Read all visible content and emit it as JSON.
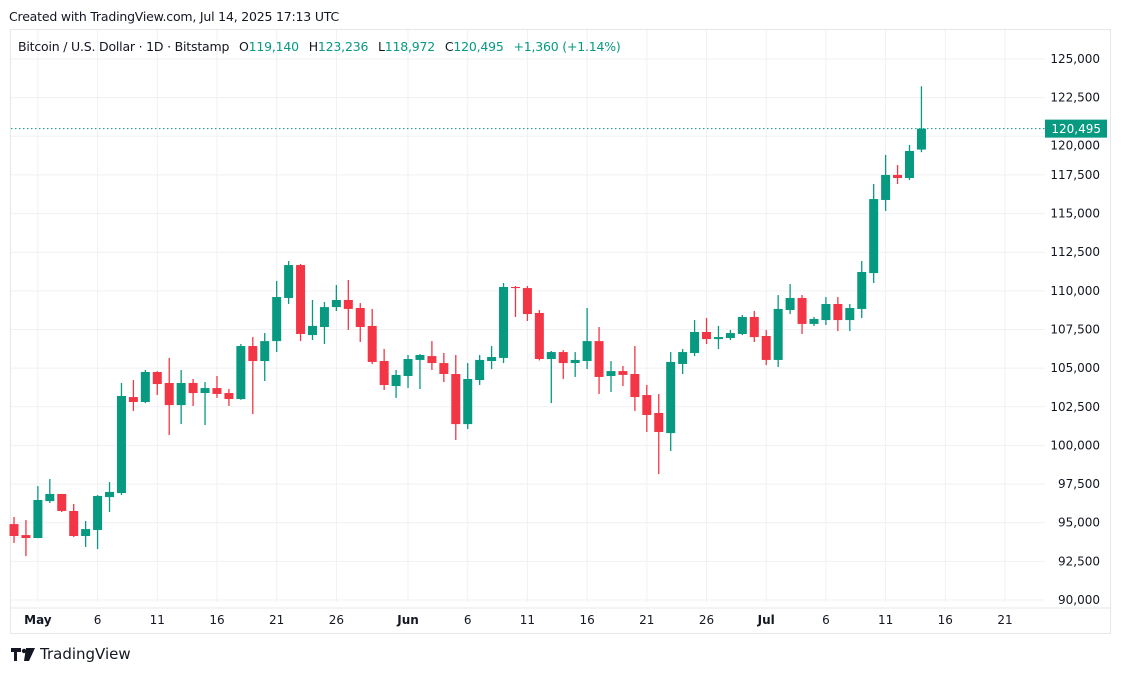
{
  "header": {
    "created": "Created with TradingView.com, Jul 14, 2025 17:13 UTC"
  },
  "legend": {
    "symbol": "Bitcoin / U.S. Dollar · 1D · Bitstamp",
    "o_label": "O",
    "o": "119,140",
    "h_label": "H",
    "h": "123,236",
    "l_label": "L",
    "l": "118,972",
    "c_label": "C",
    "c": "120,495",
    "change": "+1,360 (+1.14%)"
  },
  "footer": {
    "brand": "TradingView",
    "logo_icon": "tradingview-logo-icon"
  },
  "colors": {
    "up": "#089981",
    "down": "#F23645",
    "grid": "#f0f1f3",
    "text": "#131722"
  },
  "chart_data": {
    "type": "candlestick",
    "title": "Bitcoin / U.S. Dollar · 1D · Bitstamp",
    "ylim": [
      90000,
      125000
    ],
    "y_ticks": [
      "125,000",
      "122,500",
      "120,000",
      "117,500",
      "115,000",
      "112,500",
      "110,000",
      "107,500",
      "105,000",
      "102,500",
      "100,000",
      "97,500",
      "95,000",
      "92,500",
      "90,000"
    ],
    "y_tick_values": [
      125000,
      122500,
      120000,
      117500,
      115000,
      112500,
      110000,
      107500,
      105000,
      102500,
      100000,
      97500,
      95000,
      92500,
      90000
    ],
    "x_ticks": [
      {
        "label": "May",
        "date": "2025-05-01",
        "bold": true
      },
      {
        "label": "6",
        "date": "2025-05-06"
      },
      {
        "label": "11",
        "date": "2025-05-11"
      },
      {
        "label": "16",
        "date": "2025-05-16"
      },
      {
        "label": "21",
        "date": "2025-05-21"
      },
      {
        "label": "26",
        "date": "2025-05-26"
      },
      {
        "label": "Jun",
        "date": "2025-06-01",
        "bold": true
      },
      {
        "label": "6",
        "date": "2025-06-06"
      },
      {
        "label": "11",
        "date": "2025-06-11"
      },
      {
        "label": "16",
        "date": "2025-06-16"
      },
      {
        "label": "21",
        "date": "2025-06-21"
      },
      {
        "label": "26",
        "date": "2025-06-26"
      },
      {
        "label": "Jul",
        "date": "2025-07-01",
        "bold": true
      },
      {
        "label": "6",
        "date": "2025-07-06"
      },
      {
        "label": "11",
        "date": "2025-07-11"
      },
      {
        "label": "16",
        "date": "2025-07-16"
      },
      {
        "label": "21",
        "date": "2025-07-21"
      }
    ],
    "x_range": [
      "2025-04-28",
      "2025-07-31"
    ],
    "grid": true,
    "last_price": 120495,
    "last_price_label": "120,495",
    "columns": [
      "date",
      "open",
      "high",
      "low",
      "close"
    ],
    "candles": [
      [
        "2025-04-29",
        94910,
        95370,
        93690,
        94140
      ],
      [
        "2025-04-30",
        94200,
        95170,
        92840,
        94010
      ],
      [
        "2025-05-01",
        94010,
        97370,
        94000,
        96470
      ],
      [
        "2025-05-02",
        96400,
        97830,
        96270,
        96860
      ],
      [
        "2025-05-03",
        96860,
        96860,
        95690,
        95760
      ],
      [
        "2025-05-04",
        95760,
        96210,
        94070,
        94140
      ],
      [
        "2025-05-05",
        94140,
        95110,
        93430,
        94590
      ],
      [
        "2025-05-06",
        94530,
        96790,
        93300,
        96730
      ],
      [
        "2025-05-07",
        96660,
        97630,
        95690,
        96990
      ],
      [
        "2025-05-08",
        96920,
        104040,
        96790,
        103200
      ],
      [
        "2025-05-09",
        103130,
        104230,
        102230,
        102810
      ],
      [
        "2025-05-10",
        102810,
        104880,
        102740,
        104750
      ],
      [
        "2025-05-11",
        104750,
        104800,
        103260,
        103970
      ],
      [
        "2025-05-12",
        104040,
        105660,
        100670,
        102610
      ],
      [
        "2025-05-13",
        102610,
        104880,
        101380,
        104040
      ],
      [
        "2025-05-14",
        104040,
        104300,
        102550,
        103390
      ],
      [
        "2025-05-15",
        103390,
        104100,
        101320,
        103710
      ],
      [
        "2025-05-16",
        103710,
        104490,
        103070,
        103330
      ],
      [
        "2025-05-17",
        103390,
        103650,
        102550,
        103000
      ],
      [
        "2025-05-18",
        103000,
        106560,
        102950,
        106430
      ],
      [
        "2025-05-19",
        106430,
        107010,
        102030,
        105460
      ],
      [
        "2025-05-20",
        105460,
        107270,
        104170,
        106750
      ],
      [
        "2025-05-21",
        106750,
        110640,
        106040,
        109600
      ],
      [
        "2025-05-22",
        109540,
        111930,
        109150,
        111670
      ],
      [
        "2025-05-23",
        111670,
        111740,
        106750,
        107210
      ],
      [
        "2025-05-24",
        107140,
        109410,
        106820,
        107730
      ],
      [
        "2025-05-25",
        107660,
        109280,
        106560,
        108950
      ],
      [
        "2025-05-26",
        108950,
        110380,
        108700,
        109410
      ],
      [
        "2025-05-27",
        109410,
        110700,
        107470,
        108830
      ],
      [
        "2025-05-28",
        108890,
        109210,
        106690,
        107660
      ],
      [
        "2025-05-29",
        107730,
        108830,
        105270,
        105400
      ],
      [
        "2025-05-30",
        105460,
        106240,
        103580,
        103910
      ],
      [
        "2025-05-31",
        103840,
        104880,
        103070,
        104560
      ],
      [
        "2025-06-01",
        104490,
        105850,
        103710,
        105590
      ],
      [
        "2025-06-02",
        105530,
        105910,
        103650,
        105850
      ],
      [
        "2025-06-03",
        105780,
        106750,
        104880,
        105330
      ],
      [
        "2025-06-04",
        105330,
        105980,
        104100,
        104620
      ],
      [
        "2025-06-05",
        104620,
        105850,
        100350,
        101380
      ],
      [
        "2025-06-06",
        101380,
        105330,
        101060,
        104300
      ],
      [
        "2025-06-07",
        104230,
        105850,
        103910,
        105530
      ],
      [
        "2025-06-08",
        105460,
        106430,
        104940,
        105720
      ],
      [
        "2025-06-09",
        105660,
        110510,
        105330,
        110250
      ],
      [
        "2025-06-10",
        110250,
        110310,
        108310,
        110180
      ],
      [
        "2025-06-11",
        110180,
        110310,
        108050,
        108500
      ],
      [
        "2025-06-12",
        108570,
        108760,
        105500,
        105590
      ],
      [
        "2025-06-13",
        105590,
        106110,
        102740,
        106040
      ],
      [
        "2025-06-14",
        106040,
        106170,
        104300,
        105330
      ],
      [
        "2025-06-15",
        105330,
        106040,
        104430,
        105530
      ],
      [
        "2025-06-16",
        105460,
        108890,
        104940,
        106750
      ],
      [
        "2025-06-17",
        106750,
        107660,
        103330,
        104430
      ],
      [
        "2025-06-18",
        104490,
        105460,
        103460,
        104810
      ],
      [
        "2025-06-19",
        104810,
        105140,
        103840,
        104560
      ],
      [
        "2025-06-20",
        104620,
        106430,
        102230,
        103130
      ],
      [
        "2025-06-21",
        103260,
        103910,
        100870,
        101970
      ],
      [
        "2025-06-22",
        102100,
        103330,
        98150,
        100870
      ],
      [
        "2025-06-23",
        100800,
        106040,
        99640,
        105400
      ],
      [
        "2025-06-24",
        105270,
        106240,
        104620,
        106040
      ],
      [
        "2025-06-25",
        105980,
        108110,
        105780,
        107340
      ],
      [
        "2025-06-26",
        107340,
        108240,
        106560,
        106880
      ],
      [
        "2025-06-27",
        106880,
        107730,
        106240,
        107010
      ],
      [
        "2025-06-28",
        106950,
        107470,
        106820,
        107270
      ],
      [
        "2025-06-29",
        107210,
        108440,
        107140,
        108310
      ],
      [
        "2025-06-30",
        108310,
        108700,
        106690,
        107010
      ],
      [
        "2025-07-01",
        107080,
        107470,
        105200,
        105530
      ],
      [
        "2025-07-02",
        105530,
        109730,
        105070,
        108830
      ],
      [
        "2025-07-03",
        108760,
        110440,
        108500,
        109540
      ],
      [
        "2025-07-04",
        109540,
        109730,
        107210,
        107860
      ],
      [
        "2025-07-05",
        107860,
        108310,
        107730,
        108180
      ],
      [
        "2025-07-06",
        108110,
        109600,
        107790,
        109150
      ],
      [
        "2025-07-07",
        109150,
        109600,
        107400,
        108110
      ],
      [
        "2025-07-08",
        108110,
        109150,
        107400,
        108890
      ],
      [
        "2025-07-09",
        108830,
        111930,
        108240,
        111220
      ],
      [
        "2025-07-10",
        111150,
        116910,
        110510,
        115940
      ],
      [
        "2025-07-11",
        115880,
        118790,
        115170,
        117500
      ],
      [
        "2025-07-12",
        117500,
        118140,
        116910,
        117300
      ],
      [
        "2025-07-13",
        117300,
        119440,
        117170,
        119050
      ],
      [
        "2025-07-14",
        119140,
        123236,
        118972,
        120495
      ]
    ]
  }
}
